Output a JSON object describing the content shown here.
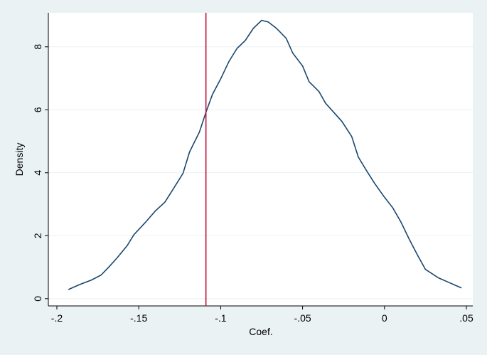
{
  "chart_data": {
    "type": "line",
    "xlabel": "Coef.",
    "ylabel": "Density",
    "x": [
      -0.193,
      -0.186,
      -0.179,
      -0.173,
      -0.168,
      -0.163,
      -0.157,
      -0.153,
      -0.146,
      -0.14,
      -0.134,
      -0.129,
      -0.123,
      -0.119,
      -0.113,
      -0.109,
      -0.105,
      -0.1,
      -0.095,
      -0.09,
      -0.085,
      -0.08,
      -0.075,
      -0.071,
      -0.066,
      -0.06,
      -0.056,
      -0.05,
      -0.046,
      -0.04,
      -0.036,
      -0.031,
      -0.026,
      -0.02,
      -0.016,
      -0.011,
      -0.006,
      -0.0004,
      0.005,
      0.01,
      0.015,
      0.02,
      0.025,
      0.033,
      0.04,
      0.047
    ],
    "series": [
      {
        "color": "#1a476f",
        "values": [
          0.29,
          0.45,
          0.59,
          0.75,
          1.02,
          1.31,
          1.69,
          2.03,
          2.42,
          2.78,
          3.07,
          3.48,
          3.98,
          4.66,
          5.29,
          5.92,
          6.49,
          6.98,
          7.53,
          7.95,
          8.2,
          8.59,
          8.84,
          8.79,
          8.59,
          8.27,
          7.8,
          7.39,
          6.89,
          6.58,
          6.21,
          5.92,
          5.63,
          5.15,
          4.5,
          4.07,
          3.66,
          3.25,
          2.89,
          2.44,
          1.9,
          1.4,
          0.93,
          0.66,
          0.5,
          0.34
        ]
      }
    ],
    "reference_line": {
      "x": -0.109,
      "color": "#c0143c"
    },
    "xlim": [
      -0.2052,
      0.0539
    ],
    "ylim": [
      -0.23,
      9.08
    ],
    "xticks": [
      {
        "value": -0.2,
        "label": "-.2"
      },
      {
        "value": -0.15,
        "label": "-.15"
      },
      {
        "value": -0.1,
        "label": "-.1"
      },
      {
        "value": -0.05,
        "label": "-.05"
      },
      0,
      {
        "value": 0.05,
        "label": ".05"
      }
    ],
    "yticks": [
      0,
      2,
      4,
      6,
      8
    ],
    "grid": true
  }
}
